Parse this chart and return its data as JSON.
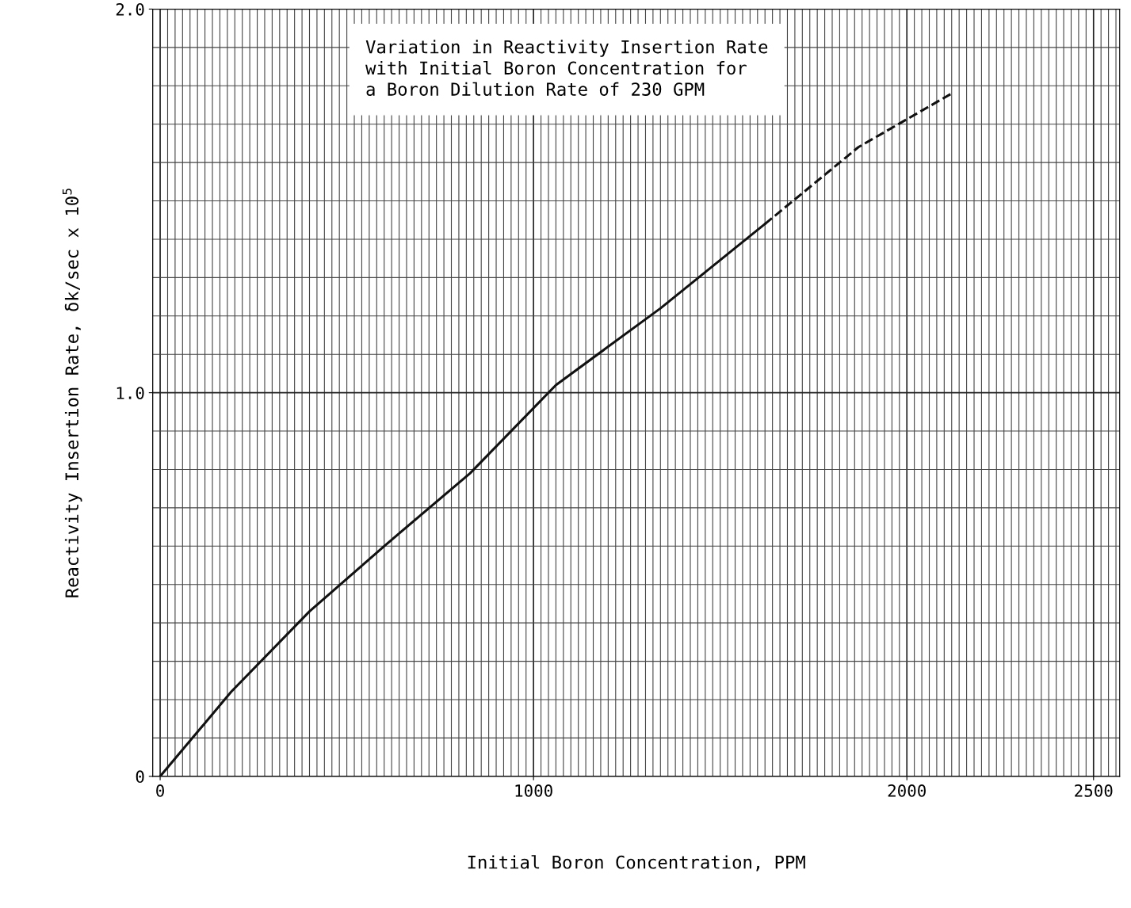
{
  "chart_data": {
    "type": "line",
    "title": "Variation in Reactivity Insertion Rate\nwith Initial Boron Concentration for\na Boron Dilution Rate of 230 GPM",
    "xlabel": "Initial Boron Concentration, PPM",
    "ylabel": "Reactivity Insertion Rate, δk/sec x 10$^{5}$",
    "series": [
      {
        "color": "#111111",
        "line_style": "solid",
        "x": [
          0,
          190,
          400,
          600,
          830,
          1060,
          1340,
          1620
        ],
        "values": [
          0,
          0.22,
          0.43,
          0.6,
          0.79,
          1.02,
          1.22,
          1.44
        ]
      },
      {
        "color": "#111111",
        "line_style": "dashed",
        "x": [
          1620,
          1870,
          2120
        ],
        "values": [
          1.44,
          1.64,
          1.78
        ]
      }
    ],
    "xlim": [
      -20,
      2570
    ],
    "xticks": [
      0,
      1000,
      2000,
      2500
    ],
    "ylim": [
      0,
      2.0
    ],
    "yticks": [
      0,
      {
        "value": 1.0,
        "label": "1.0"
      },
      {
        "value": 2.0,
        "label": "2.0"
      }
    ],
    "grid": true,
    "marker": "none"
  }
}
